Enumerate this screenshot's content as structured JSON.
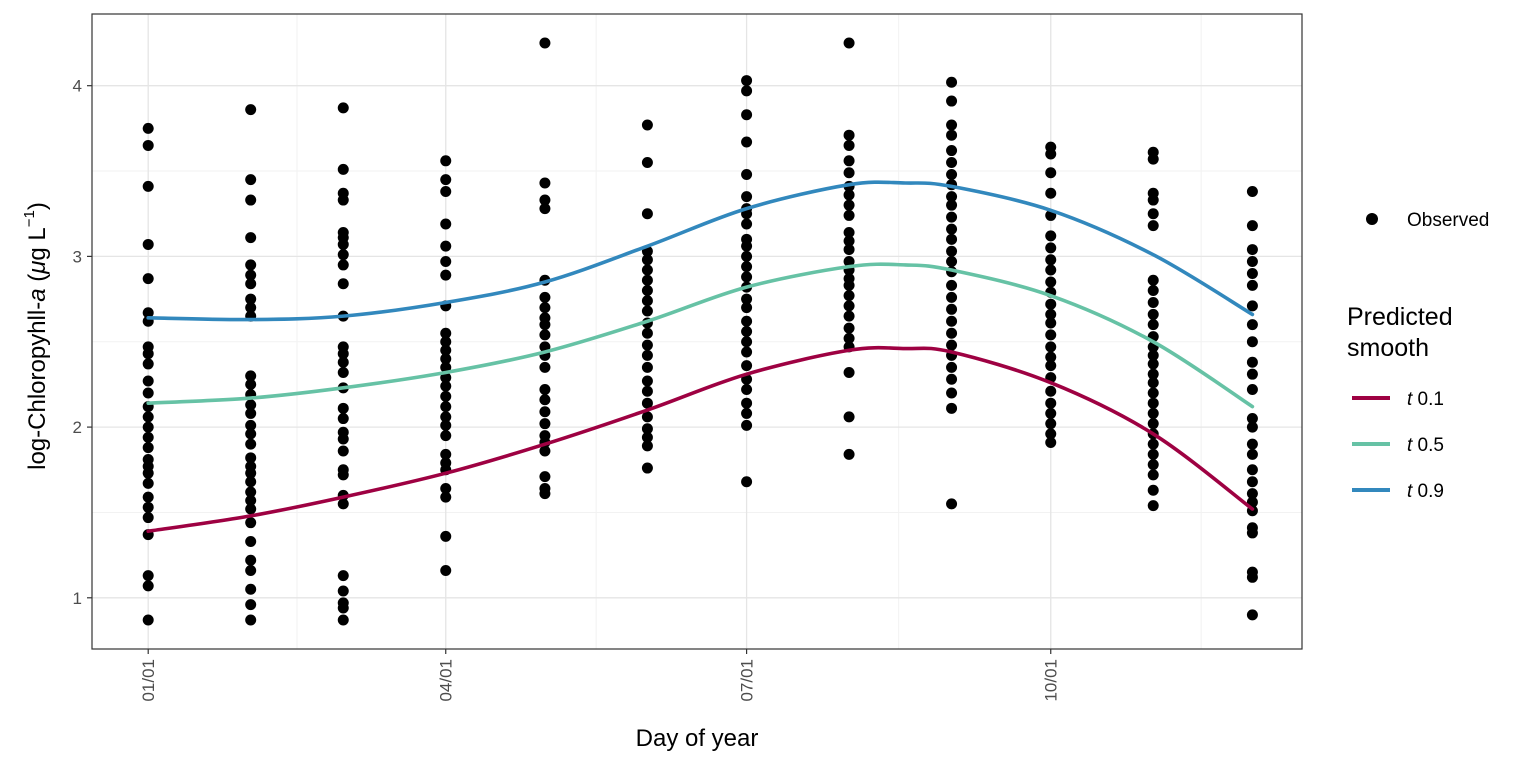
{
  "chart_data": {
    "type": "scatter",
    "xlabel": "Day of year",
    "ylabel": {
      "prefix": "log-Chloropyhll-",
      "italic": "a",
      "unit_open": " (",
      "unit_mu": "μ",
      "unit_mid": "g L",
      "unit_sup": "−1",
      "unit_close": ")"
    },
    "x_ticks": [
      {
        "day": 1,
        "label": "01/01"
      },
      {
        "day": 91,
        "label": "04/01"
      },
      {
        "day": 182,
        "label": "07/01"
      },
      {
        "day": 274,
        "label": "10/01"
      }
    ],
    "x_minor_ticks": [
      46,
      136.5,
      228,
      319.5
    ],
    "xlim": [
      -16,
      350
    ],
    "y_ticks": [
      1,
      2,
      3,
      4
    ],
    "ylim": [
      0.7,
      4.42
    ],
    "grid": true,
    "legend_placement": "right",
    "observed_legend_label": "Observed",
    "smooth_legend_title": [
      "Predicted",
      "smooth"
    ],
    "observed": [
      {
        "day": 1,
        "values": [
          3.75,
          3.65,
          3.41,
          3.07,
          2.87,
          2.67,
          2.62,
          2.47,
          2.43,
          2.37,
          2.27,
          2.2,
          2.12,
          2.06,
          2.0,
          1.94,
          1.88,
          1.81,
          1.77,
          1.73,
          1.67,
          1.59,
          1.53,
          1.47,
          1.37,
          1.13,
          1.07,
          0.87
        ]
      },
      {
        "day": 32,
        "values": [
          3.86,
          3.45,
          3.33,
          3.11,
          2.95,
          2.89,
          2.84,
          2.75,
          2.7,
          2.65,
          2.3,
          2.25,
          2.19,
          2.13,
          2.08,
          2.01,
          1.96,
          1.9,
          1.82,
          1.77,
          1.73,
          1.68,
          1.62,
          1.57,
          1.52,
          1.44,
          1.33,
          1.22,
          1.16,
          1.05,
          0.96,
          0.87
        ]
      },
      {
        "day": 60,
        "values": [
          3.87,
          3.51,
          3.37,
          3.33,
          3.14,
          3.11,
          3.07,
          3.01,
          2.95,
          2.84,
          2.65,
          2.47,
          2.43,
          2.38,
          2.32,
          2.23,
          2.11,
          2.05,
          1.97,
          1.93,
          1.86,
          1.75,
          1.72,
          1.6,
          1.55,
          1.13,
          1.04,
          0.97,
          0.94,
          0.87
        ]
      },
      {
        "day": 91,
        "values": [
          3.56,
          3.45,
          3.38,
          3.19,
          3.06,
          2.97,
          2.89,
          2.71,
          2.55,
          2.5,
          2.45,
          2.4,
          2.35,
          2.29,
          2.24,
          2.18,
          2.12,
          2.06,
          2.01,
          1.95,
          1.84,
          1.79,
          1.75,
          1.64,
          1.59,
          1.36,
          1.16
        ]
      },
      {
        "day": 121,
        "values": [
          4.25,
          3.43,
          3.33,
          3.28,
          2.86,
          2.76,
          2.7,
          2.64,
          2.6,
          2.54,
          2.47,
          2.42,
          2.35,
          2.22,
          2.16,
          2.09,
          2.02,
          1.95,
          1.91,
          1.86,
          1.71,
          1.64,
          1.61
        ]
      },
      {
        "day": 152,
        "values": [
          3.77,
          3.55,
          3.25,
          3.03,
          2.98,
          2.92,
          2.86,
          2.8,
          2.74,
          2.68,
          2.61,
          2.55,
          2.48,
          2.42,
          2.35,
          2.27,
          2.21,
          2.14,
          2.06,
          1.99,
          1.94,
          1.89,
          1.76
        ]
      },
      {
        "day": 182,
        "values": [
          4.03,
          3.97,
          3.83,
          3.67,
          3.48,
          3.35,
          3.28,
          3.25,
          3.19,
          3.1,
          3.06,
          3.0,
          2.94,
          2.88,
          2.82,
          2.75,
          2.7,
          2.62,
          2.56,
          2.5,
          2.44,
          2.36,
          2.28,
          2.22,
          2.14,
          2.08,
          2.01,
          1.68
        ]
      },
      {
        "day": 213,
        "values": [
          4.25,
          3.71,
          3.65,
          3.56,
          3.49,
          3.41,
          3.36,
          3.3,
          3.24,
          3.14,
          3.09,
          3.04,
          2.97,
          2.92,
          2.87,
          2.83,
          2.77,
          2.71,
          2.65,
          2.58,
          2.52,
          2.47,
          2.32,
          2.06,
          1.84
        ]
      },
      {
        "day": 244,
        "values": [
          4.02,
          3.91,
          3.77,
          3.71,
          3.62,
          3.55,
          3.48,
          3.42,
          3.35,
          3.3,
          3.23,
          3.16,
          3.1,
          3.03,
          2.97,
          2.91,
          2.83,
          2.76,
          2.69,
          2.62,
          2.55,
          2.48,
          2.42,
          2.35,
          2.28,
          2.2,
          2.11,
          1.55
        ]
      },
      {
        "day": 274,
        "values": [
          3.64,
          3.6,
          3.49,
          3.37,
          3.24,
          3.12,
          3.05,
          2.98,
          2.92,
          2.85,
          2.79,
          2.72,
          2.66,
          2.61,
          2.54,
          2.47,
          2.41,
          2.36,
          2.29,
          2.21,
          2.14,
          2.08,
          2.02,
          1.96,
          1.91
        ]
      },
      {
        "day": 305,
        "values": [
          3.61,
          3.57,
          3.37,
          3.33,
          3.25,
          3.18,
          2.86,
          2.8,
          2.73,
          2.66,
          2.6,
          2.53,
          2.47,
          2.42,
          2.37,
          2.31,
          2.26,
          2.2,
          2.14,
          2.08,
          2.02,
          1.96,
          1.9,
          1.84,
          1.78,
          1.72,
          1.63,
          1.54
        ]
      },
      {
        "day": 335,
        "values": [
          3.38,
          3.18,
          3.04,
          2.97,
          2.9,
          2.83,
          2.71,
          2.6,
          2.5,
          2.38,
          2.31,
          2.22,
          2.05,
          2.0,
          1.9,
          1.84,
          1.75,
          1.68,
          1.61,
          1.56,
          1.51,
          1.41,
          1.38,
          1.15,
          1.12,
          0.9
        ]
      }
    ],
    "series": [
      {
        "name_italic": "t",
        "name_value": " 0.1",
        "color": "#9E0142",
        "x": [
          1,
          32,
          60,
          91,
          121,
          152,
          182,
          213,
          230,
          244,
          274,
          305,
          335
        ],
        "y": [
          1.39,
          1.48,
          1.59,
          1.73,
          1.9,
          2.1,
          2.31,
          2.45,
          2.46,
          2.44,
          2.26,
          1.96,
          1.52
        ]
      },
      {
        "name_italic": "t",
        "name_value": " 0.5",
        "color": "#66C2A5",
        "x": [
          1,
          32,
          60,
          91,
          121,
          152,
          182,
          213,
          230,
          244,
          274,
          305,
          335
        ],
        "y": [
          2.14,
          2.17,
          2.23,
          2.32,
          2.44,
          2.62,
          2.82,
          2.94,
          2.95,
          2.92,
          2.77,
          2.5,
          2.12
        ]
      },
      {
        "name_italic": "t",
        "name_value": " 0.9",
        "color": "#3288BD",
        "x": [
          1,
          32,
          60,
          91,
          121,
          152,
          182,
          213,
          230,
          244,
          274,
          305,
          335
        ],
        "y": [
          2.64,
          2.63,
          2.65,
          2.73,
          2.85,
          3.06,
          3.28,
          3.42,
          3.43,
          3.41,
          3.27,
          3.01,
          2.66
        ]
      }
    ]
  }
}
